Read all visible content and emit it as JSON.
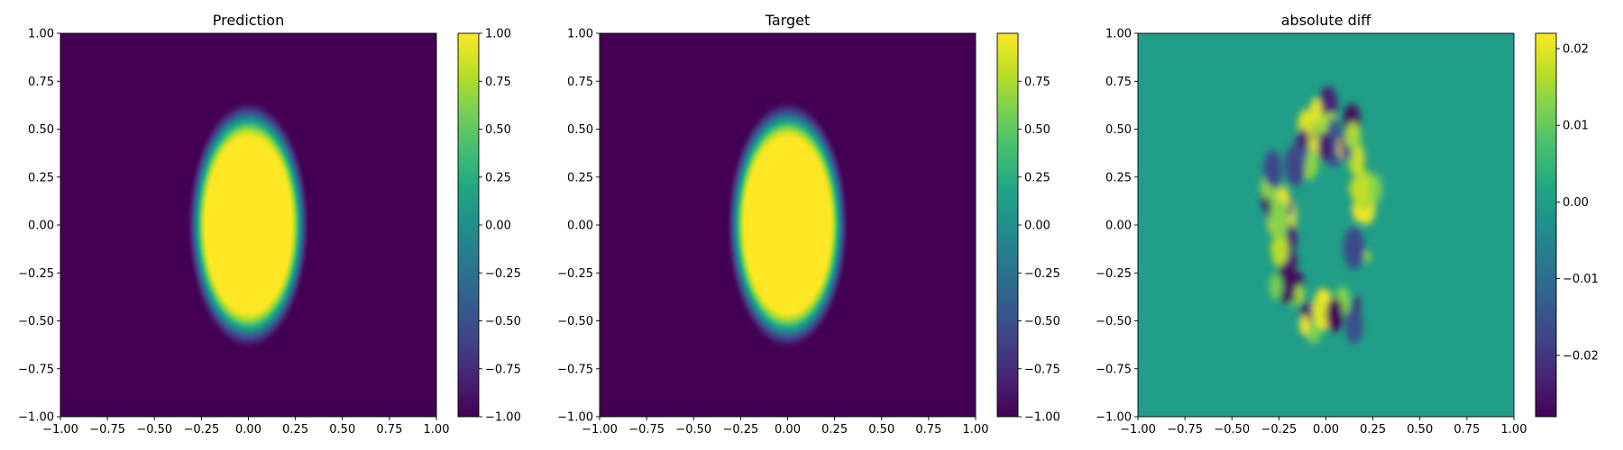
{
  "chart_data": [
    {
      "type": "heatmap",
      "title": "Prediction",
      "xlim": [
        -1.0,
        1.0
      ],
      "ylim": [
        -1.0,
        1.0
      ],
      "xticks": [
        "−1.00",
        "−0.75",
        "−0.50",
        "−0.25",
        "0.00",
        "0.25",
        "0.50",
        "0.75",
        "1.00"
      ],
      "yticks": [
        "−1.00",
        "−0.75",
        "−0.50",
        "−0.25",
        "0.00",
        "0.25",
        "0.50",
        "0.75",
        "1.00"
      ],
      "colormap": "viridis",
      "colorbar": {
        "range": [
          -1.0,
          1.0
        ],
        "ticks": [
          -1.0,
          -0.75,
          -0.5,
          -0.25,
          0.0,
          0.25,
          0.5,
          0.75,
          1.0
        ],
        "tick_labels": [
          "−1.00",
          "−0.75",
          "−0.50",
          "−0.25",
          "0.00",
          "0.25",
          "0.50",
          "0.75",
          "1.00"
        ]
      },
      "field": {
        "shape": "ellipse",
        "center": [
          0.0,
          0.0
        ],
        "semi_axes": [
          0.25,
          0.5
        ],
        "inside_value": 1.0,
        "outside_value": -1.0
      }
    },
    {
      "type": "heatmap",
      "title": "Target",
      "xlim": [
        -1.0,
        1.0
      ],
      "ylim": [
        -1.0,
        1.0
      ],
      "xticks": [
        "−1.00",
        "−0.75",
        "−0.50",
        "−0.25",
        "0.00",
        "0.25",
        "0.50",
        "0.75",
        "1.00"
      ],
      "yticks": [
        "−1.00",
        "−0.75",
        "−0.50",
        "−0.25",
        "0.00",
        "0.25",
        "0.50",
        "0.75",
        "1.00"
      ],
      "colormap": "viridis",
      "colorbar": {
        "range": [
          -1.0,
          1.0
        ],
        "ticks": [
          -1.0,
          -0.75,
          -0.5,
          -0.25,
          0.0,
          0.25,
          0.5,
          0.75
        ],
        "tick_labels": [
          "−1.00",
          "−0.75",
          "−0.50",
          "−0.25",
          "0.00",
          "0.25",
          "0.50",
          "0.75"
        ]
      },
      "field": {
        "shape": "ellipse",
        "center": [
          0.0,
          0.0
        ],
        "semi_axes": [
          0.25,
          0.5
        ],
        "inside_value": 1.0,
        "outside_value": -1.0
      }
    },
    {
      "type": "heatmap",
      "title": "absolute diff",
      "xlim": [
        -1.0,
        1.0
      ],
      "ylim": [
        -1.0,
        1.0
      ],
      "xticks": [
        "−1.00",
        "−0.75",
        "−0.50",
        "−0.25",
        "0.00",
        "0.25",
        "0.50",
        "0.75",
        "1.00"
      ],
      "yticks": [
        "−1.00",
        "−0.75",
        "−0.50",
        "−0.25",
        "0.00",
        "0.25",
        "0.50",
        "0.75",
        "1.00"
      ],
      "colormap": "viridis",
      "colorbar": {
        "range": [
          -0.028,
          0.022
        ],
        "ticks": [
          -0.02,
          -0.01,
          0.0,
          0.01,
          0.02
        ],
        "tick_labels": [
          "−0.02",
          "−0.01",
          "0.00",
          "0.01",
          "0.02"
        ]
      },
      "field": {
        "shape": "residual",
        "background_value": 0.0,
        "max_value": 0.022,
        "min_value": -0.028
      }
    }
  ]
}
